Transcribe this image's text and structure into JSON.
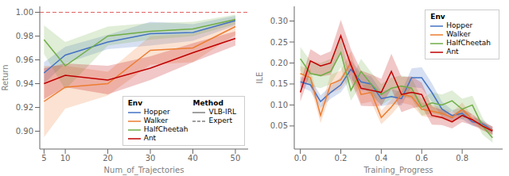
{
  "chart_data": [
    {
      "type": "line",
      "xlabel": "Num_of_Trajectories",
      "ylabel": "Return",
      "x": [
        5,
        10,
        20,
        30,
        40,
        50
      ],
      "xlim": [
        4,
        53
      ],
      "xticks": [
        5,
        10,
        20,
        30,
        40,
        50
      ],
      "ylim": [
        0.885,
        1.005
      ],
      "yticks": [
        {
          "value": 0.9,
          "label": "0.90"
        },
        {
          "value": 0.92,
          "label": "0.92"
        },
        {
          "value": 0.94,
          "label": "0.94"
        },
        {
          "value": 0.96,
          "label": "0.96"
        },
        {
          "value": 0.98,
          "label": "0.98"
        },
        {
          "value": 1.0,
          "label": "1.00"
        }
      ],
      "series": [
        {
          "name": "Hopper",
          "color": "#4472c4",
          "values": [
            0.949,
            0.964,
            0.975,
            0.982,
            0.983,
            0.993
          ],
          "std": [
            0.009,
            0.007,
            0.006,
            0.01,
            0.007,
            0.004
          ]
        },
        {
          "name": "Walker",
          "color": "#ed7d31",
          "values": [
            0.925,
            0.937,
            0.94,
            0.968,
            0.97,
            0.988
          ],
          "std": [
            0.03,
            0.018,
            0.01,
            0.012,
            0.012,
            0.007
          ]
        },
        {
          "name": "HalfCheetah",
          "color": "#70ad47",
          "values": [
            0.977,
            0.955,
            0.98,
            0.984,
            0.986,
            0.994
          ],
          "std": [
            0.012,
            0.02,
            0.008,
            0.007,
            0.006,
            0.004
          ]
        },
        {
          "name": "Ant",
          "color": "#c00000",
          "values": [
            0.94,
            0.947,
            0.943,
            0.953,
            0.966,
            0.978
          ],
          "std": [
            0.013,
            0.01,
            0.012,
            0.01,
            0.008,
            0.006
          ]
        }
      ],
      "reference_line": {
        "y": 1.0,
        "color": "#e06060",
        "line_style": "dashed"
      },
      "legend": "lower right",
      "legend_title": "Env",
      "method_legend": {
        "title": "Method",
        "items": [
          {
            "name": "VLB-IRL",
            "color": "gray",
            "line_style": "solid"
          },
          {
            "name": "Expert",
            "color": "gray",
            "line_style": "dashed"
          }
        ]
      }
    },
    {
      "type": "line",
      "xlabel": "Training_Progress",
      "ylabel": "ILE",
      "x": [
        0.0,
        0.05,
        0.1,
        0.15,
        0.2,
        0.25,
        0.3,
        0.35,
        0.4,
        0.45,
        0.5,
        0.55,
        0.6,
        0.65,
        0.7,
        0.75,
        0.8,
        0.85,
        0.9,
        0.95
      ],
      "xlim": [
        -0.03,
        1.0
      ],
      "xticks": [
        {
          "value": 0.0,
          "label": "0.0"
        },
        0.2,
        0.4,
        0.6,
        0.8
      ],
      "ylim": [
        -0.005,
        0.335
      ],
      "yticks": [
        0.05,
        {
          "value": 0.1,
          "label": "0.10"
        },
        0.15,
        {
          "value": 0.2,
          "label": "0.20"
        },
        0.25,
        {
          "value": 0.3,
          "label": "0.30"
        }
      ],
      "series": [
        {
          "name": "Hopper",
          "color": "#4472c4",
          "values": [
            0.155,
            0.148,
            0.108,
            0.13,
            0.148,
            0.185,
            0.155,
            0.15,
            0.115,
            0.12,
            0.115,
            0.165,
            0.165,
            0.13,
            0.09,
            0.075,
            0.08,
            0.06,
            0.055,
            0.04
          ],
          "std": [
            0.012,
            0.015,
            0.015,
            0.015,
            0.018,
            0.022,
            0.02,
            0.018,
            0.018,
            0.018,
            0.016,
            0.022,
            0.025,
            0.022,
            0.018,
            0.013,
            0.013,
            0.01,
            0.009,
            0.009
          ]
        },
        {
          "name": "Walker",
          "color": "#ed7d31",
          "values": [
            0.175,
            0.165,
            0.075,
            0.15,
            0.16,
            0.2,
            0.125,
            0.13,
            0.07,
            0.095,
            0.125,
            0.12,
            0.09,
            0.085,
            0.08,
            0.07,
            0.09,
            0.065,
            0.05,
            0.04
          ],
          "std": [
            0.018,
            0.02,
            0.018,
            0.022,
            0.022,
            0.028,
            0.022,
            0.022,
            0.016,
            0.018,
            0.02,
            0.02,
            0.016,
            0.016,
            0.013,
            0.013,
            0.016,
            0.01,
            0.009,
            0.009
          ]
        },
        {
          "name": "HalfCheetah",
          "color": "#70ad47",
          "values": [
            0.21,
            0.175,
            0.17,
            0.18,
            0.225,
            0.135,
            0.18,
            0.15,
            0.125,
            0.14,
            0.145,
            0.14,
            0.095,
            0.105,
            0.1,
            0.11,
            0.09,
            0.1,
            0.05,
            0.022
          ],
          "std": [
            0.028,
            0.03,
            0.03,
            0.03,
            0.035,
            0.025,
            0.03,
            0.028,
            0.025,
            0.025,
            0.025,
            0.025,
            0.02,
            0.025,
            0.025,
            0.025,
            0.025,
            0.022,
            0.02,
            0.012
          ]
        },
        {
          "name": "Ant",
          "color": "#c00000",
          "values": [
            0.13,
            0.205,
            0.193,
            0.2,
            0.265,
            0.195,
            0.14,
            0.135,
            0.13,
            0.18,
            0.125,
            0.13,
            0.125,
            0.075,
            0.07,
            0.06,
            0.075,
            0.065,
            0.05,
            0.038
          ],
          "std": [
            0.022,
            0.028,
            0.025,
            0.028,
            0.038,
            0.038,
            0.042,
            0.038,
            0.032,
            0.042,
            0.042,
            0.038,
            0.028,
            0.022,
            0.018,
            0.016,
            0.016,
            0.013,
            0.01,
            0.01
          ]
        }
      ],
      "legend": "upper right",
      "legend_title": "Env"
    }
  ]
}
